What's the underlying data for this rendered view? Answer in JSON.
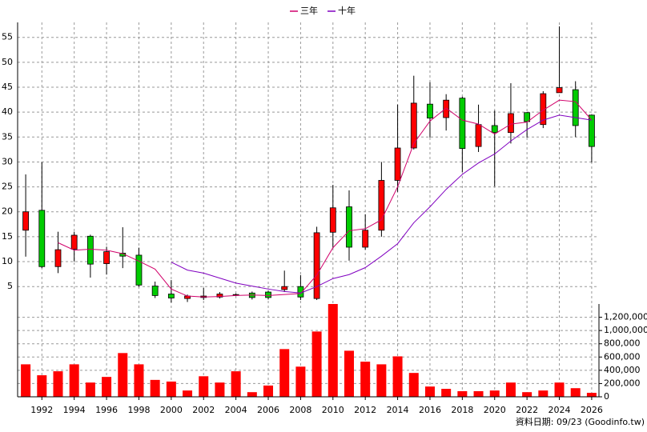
{
  "chart_data": [
    {
      "type": "candlestick",
      "x": [
        1991,
        1992,
        1993,
        1994,
        1995,
        1996,
        1997,
        1998,
        1999,
        2000,
        2001,
        2002,
        2003,
        2004,
        2005,
        2006,
        2007,
        2008,
        2009,
        2010,
        2011,
        2012,
        2013,
        2014,
        2015,
        2016,
        2017,
        2018,
        2019,
        2020,
        2021,
        2022,
        2023,
        2024,
        2025,
        2026
      ],
      "open": [
        16.3,
        20.3,
        9,
        12.5,
        15.1,
        9.6,
        11.7,
        11.3,
        5.1,
        3.5,
        2.6,
        2.8,
        2.9,
        3.3,
        3.7,
        3.9,
        4.4,
        5,
        2.6,
        15.9,
        21,
        12.9,
        16.3,
        26.3,
        32.8,
        41.6,
        38.9,
        42.8,
        33.1,
        37.3,
        35.9,
        39.9,
        37.5,
        43.9,
        44.5,
        39.4
      ],
      "high": [
        27.5,
        30,
        16,
        16,
        15.4,
        13,
        16.9,
        12.8,
        6,
        6.3,
        3.4,
        4.7,
        3.9,
        3.6,
        4,
        4.2,
        8.2,
        7.3,
        17,
        25.4,
        24.3,
        19.5,
        30,
        41.5,
        47.3,
        46,
        43.6,
        43.1,
        41.5,
        40.3,
        45.8,
        40,
        44.2,
        57.2,
        46.2,
        39.4
      ],
      "low": [
        11,
        8.7,
        7.7,
        10,
        6.8,
        7.4,
        8.7,
        5,
        2.7,
        1.8,
        1.9,
        2.3,
        2.6,
        3.1,
        2.4,
        2.4,
        3.9,
        2.3,
        2.3,
        12.7,
        10.2,
        12.4,
        15,
        24,
        32.5,
        34.9,
        36.3,
        28,
        32,
        25.1,
        33.7,
        34.9,
        36.8,
        43.9,
        35,
        29.9
      ],
      "close": [
        20,
        9,
        12.4,
        15.3,
        9.5,
        12,
        11.1,
        5.3,
        3.2,
        2.7,
        3.1,
        3.1,
        3.5,
        3.4,
        2.8,
        2.8,
        5,
        2.9,
        15.8,
        20.8,
        12.9,
        16.3,
        26.3,
        32.8,
        41.8,
        38.8,
        42.4,
        32.7,
        37.5,
        35.9,
        39.7,
        38.1,
        43.7,
        44.9,
        37.3,
        33.1
      ],
      "up_color": "#ff0000",
      "down_color": "#00cc00",
      "series": [
        {
          "name": "三年",
          "color": "#d1006a",
          "values": [
            null,
            null,
            13.8,
            12.3,
            12.5,
            12.3,
            11.6,
            10.1,
            8.5,
            4.5,
            3.1,
            2.9,
            3.0,
            3.2,
            3.3,
            3.2,
            3.4,
            3.6,
            7.3,
            12.8,
            16.2,
            16.6,
            18.4,
            25,
            33.7,
            38.2,
            40.8,
            38.4,
            37.6,
            35.6,
            37.6,
            38,
            40.4,
            42.4,
            42.1,
            38.4
          ]
        },
        {
          "name": "十年",
          "color": "#8000c0",
          "values": [
            null,
            null,
            null,
            null,
            null,
            null,
            null,
            null,
            null,
            9.9,
            8.3,
            7.7,
            6.7,
            5.7,
            5.1,
            4.5,
            4.0,
            3.7,
            5,
            6.6,
            7.4,
            8.8,
            11.1,
            13.6,
            17.8,
            21,
            24.5,
            27.5,
            29.8,
            31.6,
            34.2,
            36.5,
            38.4,
            39.4,
            38.9,
            38.4
          ]
        }
      ],
      "xlim": [
        1990.5,
        2026.45
      ],
      "ylim": [
        1.5,
        58
      ],
      "yticks": [
        5,
        10,
        15,
        20,
        25,
        30,
        35,
        40,
        45,
        50,
        55
      ],
      "grid": true
    },
    {
      "type": "bar",
      "x": [
        1991,
        1992,
        1993,
        1994,
        1995,
        1996,
        1997,
        1998,
        1999,
        2000,
        2001,
        2002,
        2003,
        2004,
        2005,
        2006,
        2007,
        2008,
        2009,
        2010,
        2011,
        2012,
        2013,
        2014,
        2015,
        2016,
        2017,
        2018,
        2019,
        2020,
        2021,
        2022,
        2023,
        2024,
        2025,
        2026
      ],
      "values": [
        490000,
        325000,
        385000,
        490000,
        215000,
        300000,
        660000,
        490000,
        255000,
        230000,
        95000,
        310000,
        215000,
        385000,
        70000,
        170000,
        720000,
        455000,
        985000,
        1400000,
        695000,
        530000,
        490000,
        610000,
        360000,
        155000,
        120000,
        85000,
        85000,
        95000,
        215000,
        70000,
        95000,
        215000,
        130000,
        60000
      ],
      "color": "#ff0000",
      "xlim": [
        1990.5,
        2026.45
      ],
      "xticks": [
        1992,
        1994,
        1996,
        1998,
        2000,
        2002,
        2004,
        2006,
        2008,
        2010,
        2012,
        2014,
        2016,
        2018,
        2020,
        2022,
        2024,
        2026
      ],
      "ylim": [
        0,
        1400000
      ],
      "yticks": [
        0,
        {
          "value": 200000,
          "label": "200,000"
        },
        {
          "value": 400000,
          "label": "400,000"
        },
        {
          "value": 600000,
          "label": "600,000"
        },
        {
          "value": 800000,
          "label": "800,000"
        },
        {
          "value": 1000000,
          "label": "1,000,000"
        },
        {
          "value": 1200000,
          "label": "1,200,000"
        }
      ],
      "grid": true
    }
  ],
  "footer": "資料日期: 09/23 (Goodinfo.tw)"
}
